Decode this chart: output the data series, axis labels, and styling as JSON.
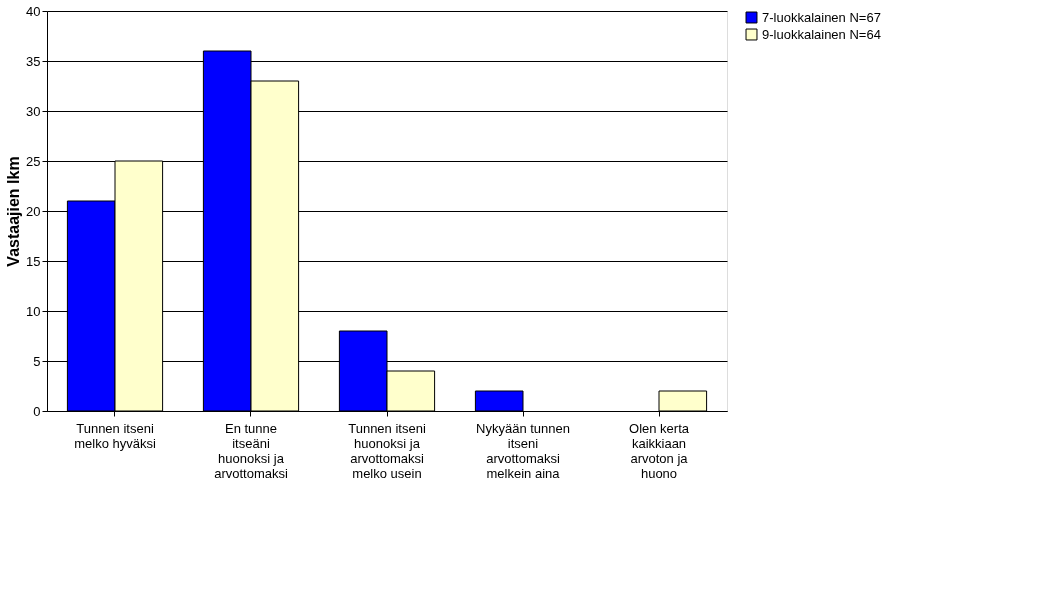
{
  "chart_data": {
    "type": "bar",
    "ylabel": "Vastaajien lkm",
    "categories": [
      "Tunnen itseni melko hyväksi",
      "En tunne itseäni huonoksi ja arvottomaksi",
      "Tunnen itseni huonoksi ja arvottomaksi melko usein",
      "Nykyään tunnen itseni arvottomaksi melkein aina",
      "Olen kerta kaikkiaan arvoton ja huono"
    ],
    "series": [
      {
        "name": "7-luokkalainen N=67",
        "color": "#0000ff",
        "values": [
          21,
          36,
          8,
          2,
          0
        ]
      },
      {
        "name": "9-luokkalainen N=64",
        "color": "#ffffcc",
        "values": [
          25,
          33,
          4,
          0,
          2
        ]
      }
    ],
    "ylim": [
      0,
      40
    ],
    "yticks": [
      0,
      5,
      10,
      15,
      20,
      25,
      30,
      35,
      40
    ],
    "grid": "y",
    "legend": "right"
  }
}
